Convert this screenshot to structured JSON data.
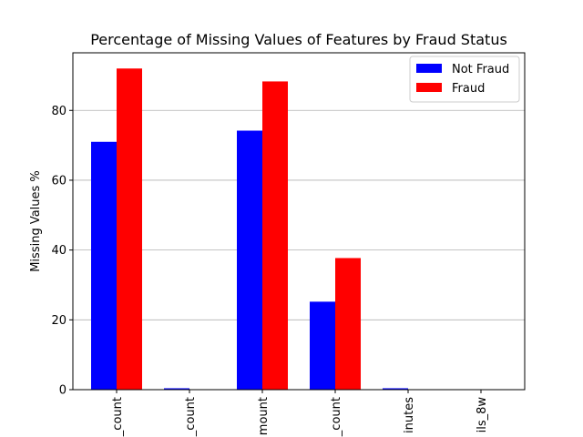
{
  "chart_data": {
    "type": "bar",
    "title": "Percentage of Missing Values of Features by Fraud Status",
    "xlabel": "",
    "ylabel": "Missing Values %",
    "categories": [
      "_count",
      "_count",
      "mount",
      "_count",
      "inutes",
      "ils_8w"
    ],
    "series": [
      {
        "name": "Not Fraud",
        "color": "#0000ff",
        "values": [
          71.0,
          0.4,
          74.2,
          25.2,
          0.4,
          0.0
        ]
      },
      {
        "name": "Fraud",
        "color": "#ff0000",
        "values": [
          92.0,
          0.0,
          88.3,
          37.7,
          0.0,
          0.0
        ]
      }
    ],
    "ylim": [
      0,
      96.5
    ],
    "yticks": [
      0,
      20,
      40,
      60,
      80
    ],
    "grid": "y",
    "legend_position": "top-right"
  }
}
